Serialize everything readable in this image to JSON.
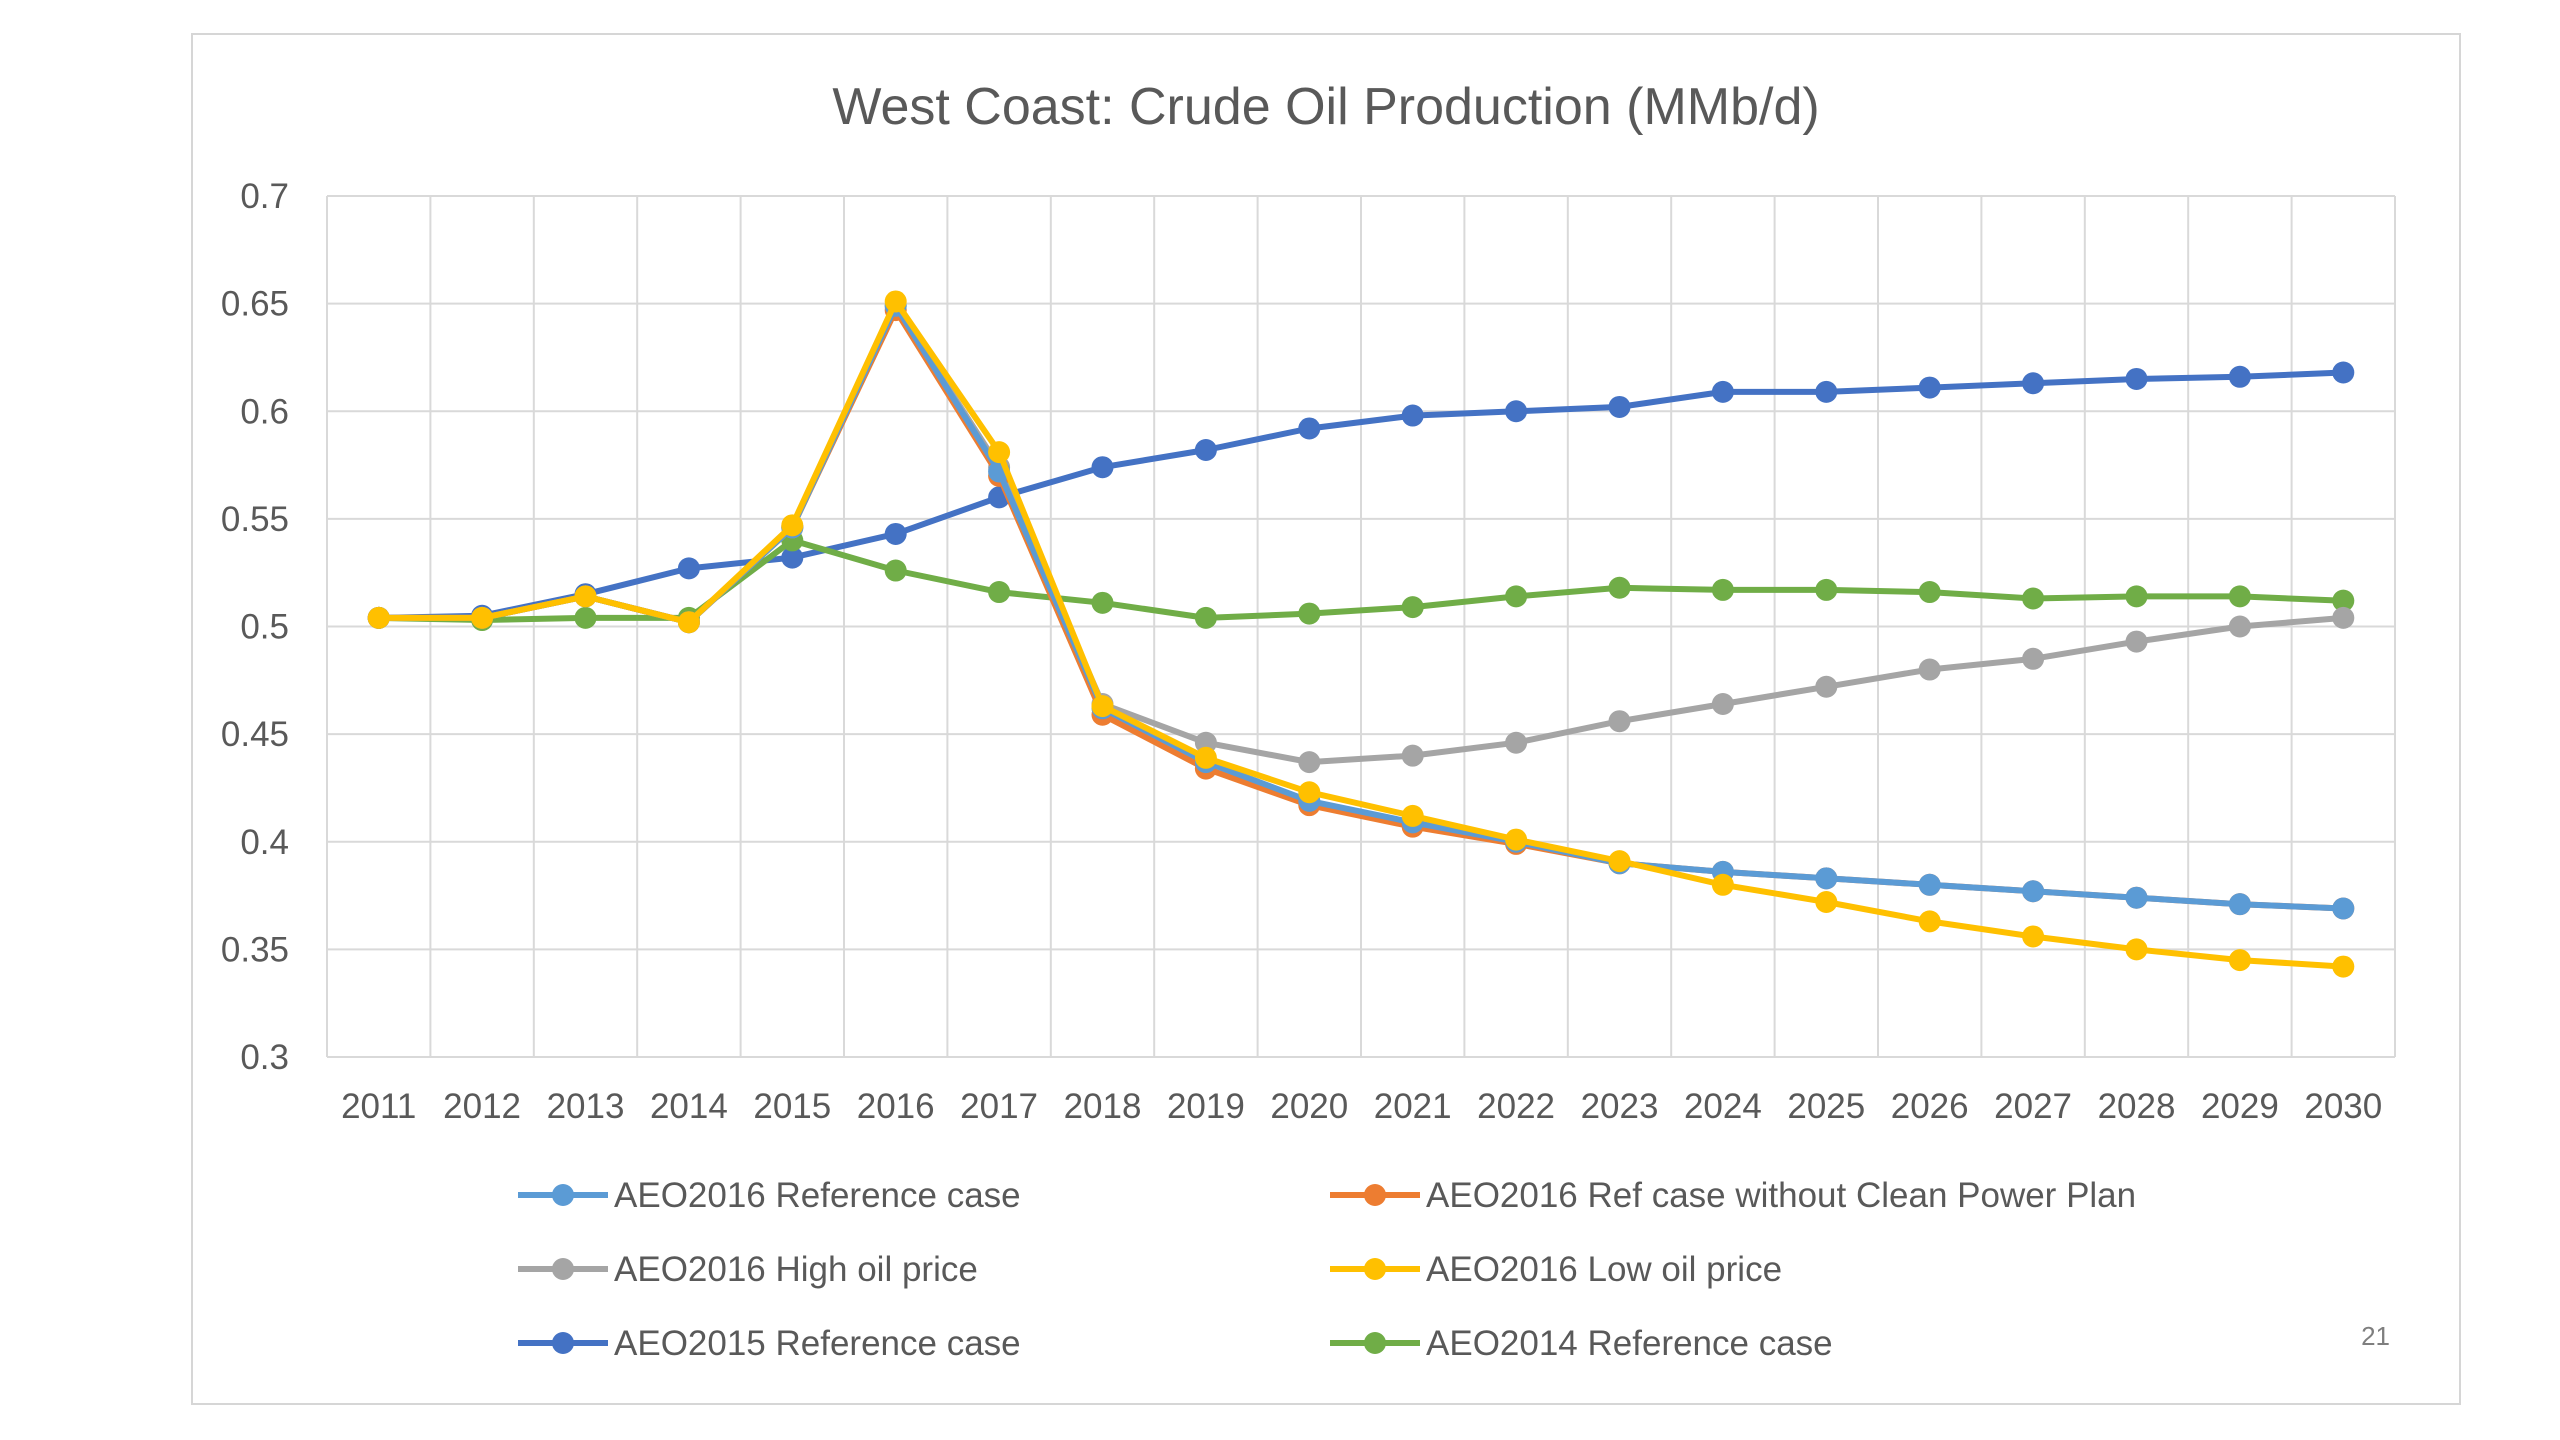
{
  "page_number": "21",
  "chart_data": {
    "type": "line",
    "title": "West Coast: Crude Oil Production (MMb/d)",
    "xlabel": "",
    "ylabel": "",
    "categories": [
      "2011",
      "2012",
      "2013",
      "2014",
      "2015",
      "2016",
      "2017",
      "2018",
      "2019",
      "2020",
      "2021",
      "2022",
      "2023",
      "2024",
      "2025",
      "2026",
      "2027",
      "2028",
      "2029",
      "2030"
    ],
    "ylim": [
      0.3,
      0.7
    ],
    "yticks": [
      "0.3",
      "0.35",
      "0.4",
      "0.45",
      "0.5",
      "0.55",
      "0.6",
      "0.65",
      "0.7"
    ],
    "grid": true,
    "legend_position": "bottom",
    "series": [
      {
        "name": "AEO2016 Reference case",
        "color": "#5b9bd5",
        "values": [
          0.504,
          0.504,
          0.514,
          0.502,
          0.546,
          0.649,
          0.572,
          0.462,
          0.437,
          0.419,
          0.409,
          0.4,
          0.39,
          0.386,
          0.383,
          0.38,
          0.377,
          0.374,
          0.371,
          0.369
        ]
      },
      {
        "name": "AEO2016 Ref case without Clean Power Plan",
        "color": "#ed7d31",
        "values": [
          0.504,
          0.504,
          0.514,
          0.502,
          0.546,
          0.647,
          0.57,
          0.459,
          0.434,
          0.417,
          0.407,
          0.399,
          0.39,
          0.386,
          0.383,
          0.38,
          0.377,
          0.374,
          0.371,
          0.369
        ]
      },
      {
        "name": "AEO2016 High oil price",
        "color": "#a5a5a5",
        "values": [
          0.504,
          0.504,
          0.514,
          0.502,
          0.546,
          0.649,
          0.574,
          0.464,
          0.446,
          0.437,
          0.44,
          0.446,
          0.456,
          0.464,
          0.472,
          0.48,
          0.485,
          0.493,
          0.5,
          0.504
        ]
      },
      {
        "name": "AEO2016 Low oil price",
        "color": "#ffc000",
        "values": [
          0.504,
          0.504,
          0.514,
          0.502,
          0.547,
          0.651,
          0.581,
          0.463,
          0.439,
          0.423,
          0.412,
          0.401,
          0.391,
          0.38,
          0.372,
          0.363,
          0.356,
          0.35,
          0.345,
          0.342
        ]
      },
      {
        "name": "AEO2015 Reference case",
        "color": "#4472c4",
        "values": [
          0.504,
          0.505,
          0.515,
          0.527,
          0.532,
          0.543,
          0.56,
          0.574,
          0.582,
          0.592,
          0.598,
          0.6,
          0.602,
          0.609,
          0.609,
          0.611,
          0.613,
          0.615,
          0.616,
          0.618
        ]
      },
      {
        "name": "AEO2014 Reference case",
        "color": "#70ad47",
        "values": [
          0.504,
          0.503,
          0.504,
          0.504,
          0.54,
          0.526,
          0.516,
          0.511,
          0.504,
          0.506,
          0.509,
          0.514,
          0.518,
          0.517,
          0.517,
          0.516,
          0.513,
          0.514,
          0.514,
          0.512
        ]
      }
    ]
  }
}
